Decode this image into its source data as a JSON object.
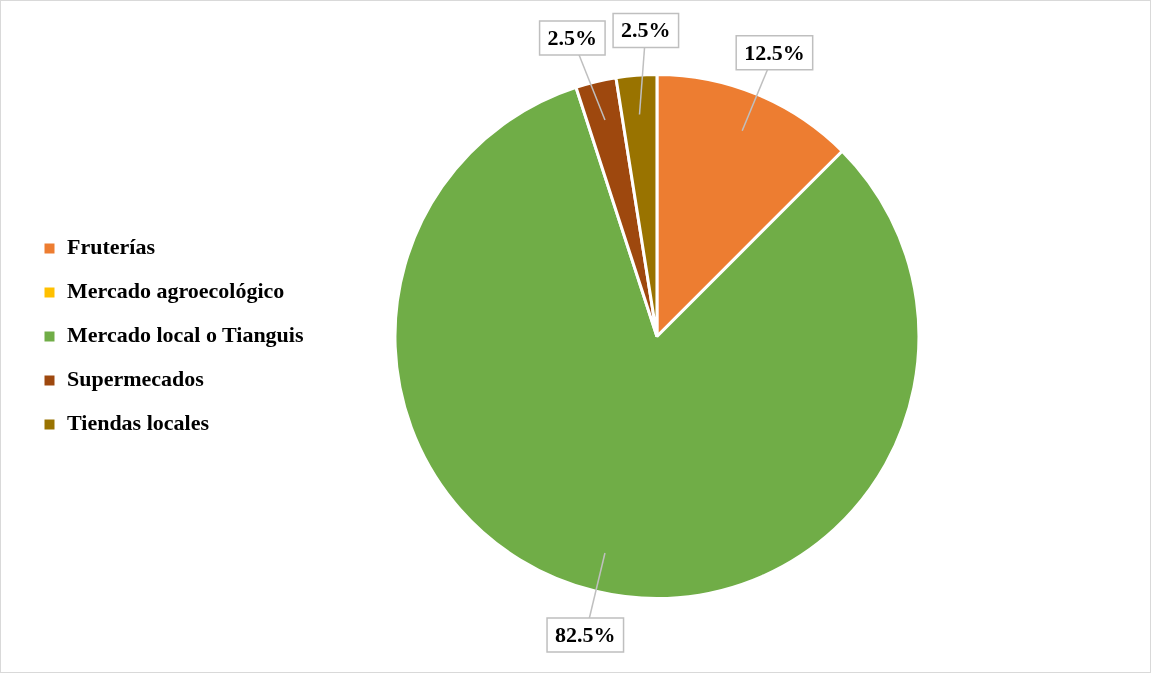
{
  "chart_data": {
    "type": "pie",
    "categories": [
      "Fruterías",
      "Mercado agroecológico",
      "Mercado local o Tianguis",
      "Supermecados",
      "Tiendas locales"
    ],
    "values": [
      12.5,
      0,
      82.5,
      2.5,
      2.5
    ],
    "colors": [
      "#ed7d31",
      "#ffc000",
      "#70ad47",
      "#9e480e",
      "#997300"
    ],
    "value_labels": [
      "12.5%",
      null,
      "82.5%",
      "2.5%",
      "2.5%"
    ],
    "legend": "left"
  }
}
